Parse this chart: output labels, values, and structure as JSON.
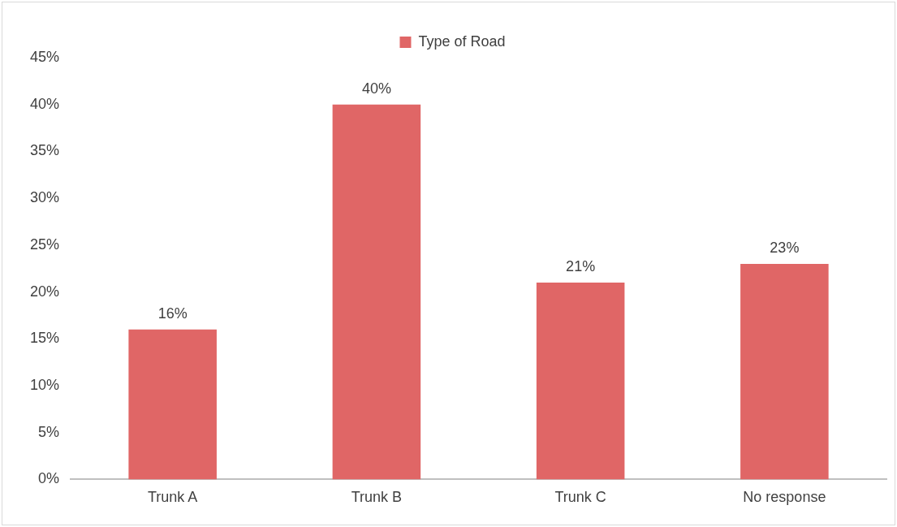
{
  "chart_data": {
    "type": "bar",
    "categories": [
      "Trunk A",
      "Trunk B",
      "Trunk C",
      "No response"
    ],
    "series": [
      {
        "name": "Type of Road",
        "color": "#e06666",
        "values": [
          16,
          40,
          21,
          23
        ],
        "value_labels": [
          "16%",
          "40%",
          "21%",
          "23%"
        ]
      }
    ],
    "ylim": [
      0,
      45
    ],
    "yticks": [
      {
        "value": 0,
        "label": "0%"
      },
      {
        "value": 5,
        "label": "5%"
      },
      {
        "value": 10,
        "label": "10%"
      },
      {
        "value": 15,
        "label": "15%"
      },
      {
        "value": 20,
        "label": "20%"
      },
      {
        "value": 25,
        "label": "25%"
      },
      {
        "value": 30,
        "label": "30%"
      },
      {
        "value": 35,
        "label": "35%"
      },
      {
        "value": 40,
        "label": "40%"
      },
      {
        "value": 45,
        "label": "45%"
      }
    ],
    "grid": false,
    "legend": "top"
  }
}
